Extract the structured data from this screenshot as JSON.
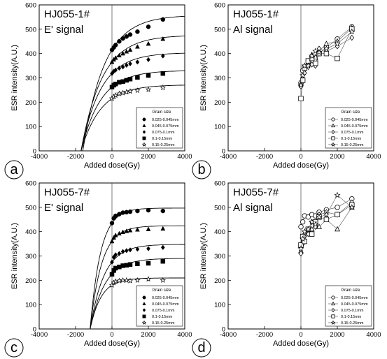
{
  "chart_data": [
    {
      "panel": "a",
      "type": "scatter",
      "title": "HJ055-1#",
      "subtitle": "E' signal",
      "xlabel": "Added dose(Gy)",
      "ylabel": "ESR intensity(A.U.)",
      "xlim": [
        -4000,
        4000
      ],
      "ylim": [
        0,
        600
      ],
      "xticks": [
        -4000,
        -2000,
        0,
        2000,
        4000
      ],
      "yticks": [
        0,
        100,
        200,
        300,
        400,
        500,
        600
      ],
      "legend_title": "Grain size",
      "legend_position": "bottom-right",
      "x": [
        0,
        100,
        200,
        400,
        600,
        800,
        1000,
        1400,
        2000,
        2800
      ],
      "series": [
        {
          "name": "0.025-0.045mm",
          "marker": "circle",
          "values": [
            415,
            425,
            435,
            450,
            462,
            470,
            478,
            490,
            510,
            540
          ],
          "fit_x0": -1600
        },
        {
          "name": "0.045-0.075mm",
          "marker": "triangle",
          "values": [
            365,
            375,
            382,
            392,
            400,
            408,
            415,
            428,
            440,
            460
          ],
          "fit_x0": -1700
        },
        {
          "name": "0.075-0.1mm",
          "marker": "diamond",
          "values": [
            318,
            327,
            332,
            340,
            345,
            352,
            358,
            365,
            375,
            390
          ],
          "fit_x0": -1700
        },
        {
          "name": "0.1-0.15mm",
          "marker": "square",
          "values": [
            262,
            270,
            275,
            282,
            285,
            290,
            295,
            302,
            310,
            318
          ],
          "fit_x0": -1700
        },
        {
          "name": "0.15-0.25mm",
          "marker": "star",
          "values": [
            215,
            222,
            228,
            235,
            238,
            242,
            245,
            248,
            252,
            260
          ],
          "fit_x0": -1700
        }
      ]
    },
    {
      "panel": "b",
      "type": "line",
      "title": "HJ055-1#",
      "subtitle": "Al signal",
      "xlabel": "Added dose(Gy)",
      "ylabel": "ESR intensity(A.U.)",
      "xlim": [
        -4000,
        4000
      ],
      "ylim": [
        0,
        600
      ],
      "xticks": [
        -4000,
        -2000,
        0,
        2000,
        4000
      ],
      "yticks": [
        0,
        100,
        200,
        300,
        400,
        500,
        600
      ],
      "legend_title": "Grain size",
      "legend_position": "bottom-right",
      "x": [
        0,
        100,
        200,
        400,
        600,
        800,
        1000,
        1400,
        2000,
        2800
      ],
      "series": [
        {
          "name": "0.025-0.045mm",
          "marker": "circle",
          "values": [
            280,
            330,
            345,
            355,
            365,
            370,
            400,
            425,
            460,
            510
          ]
        },
        {
          "name": "0.045-0.075mm",
          "marker": "triangle",
          "values": [
            275,
            300,
            340,
            360,
            395,
            385,
            410,
            440,
            450,
            505
          ]
        },
        {
          "name": "0.075-0.1mm",
          "marker": "diamond",
          "values": [
            265,
            285,
            320,
            345,
            355,
            350,
            420,
            410,
            430,
            465
          ]
        },
        {
          "name": "0.1-0.15mm",
          "marker": "square",
          "values": [
            215,
            290,
            340,
            370,
            380,
            360,
            400,
            400,
            380,
            500
          ]
        },
        {
          "name": "0.15-0.25mm",
          "marker": "star",
          "values": [
            270,
            310,
            350,
            350,
            390,
            410,
            405,
            420,
            440,
            490
          ]
        }
      ]
    },
    {
      "panel": "c",
      "type": "scatter",
      "title": "HJ055-7#",
      "subtitle": "E' signal",
      "xlabel": "Added dose(Gy)",
      "ylabel": "ESR intensity(A.U.)",
      "xlim": [
        -4000,
        4000
      ],
      "ylim": [
        0,
        600
      ],
      "xticks": [
        -4000,
        -2000,
        0,
        2000,
        4000
      ],
      "yticks": [
        0,
        100,
        200,
        300,
        400,
        500,
        600
      ],
      "legend_title": "Grain size",
      "legend_position": "bottom-right",
      "x": [
        0,
        100,
        200,
        400,
        600,
        800,
        1000,
        1400,
        2000,
        2800
      ],
      "series": [
        {
          "name": "0.025-0.045mm",
          "marker": "circle",
          "values": [
            435,
            455,
            465,
            472,
            478,
            480,
            482,
            485,
            488,
            485
          ],
          "fit_x0": -1200
        },
        {
          "name": "0.045-0.075mm",
          "marker": "triangle",
          "values": [
            360,
            375,
            385,
            392,
            398,
            402,
            405,
            408,
            410,
            412
          ],
          "fit_x0": -1200
        },
        {
          "name": "0.075-0.1mm",
          "marker": "diamond",
          "values": [
            275,
            295,
            305,
            310,
            318,
            322,
            325,
            328,
            330,
            335
          ],
          "fit_x0": -1200
        },
        {
          "name": "0.1-0.15mm",
          "marker": "square",
          "values": [
            225,
            240,
            250,
            255,
            260,
            262,
            265,
            268,
            270,
            278
          ],
          "fit_x0": -1200
        },
        {
          "name": "0.15-0.25mm",
          "marker": "star",
          "values": [
            180,
            190,
            195,
            198,
            200,
            200,
            198,
            200,
            205,
            200
          ],
          "fit_x0": -1200
        }
      ]
    },
    {
      "panel": "d",
      "type": "line",
      "title": "HJ055-7#",
      "subtitle": "Al signal",
      "xlabel": "Added dose(Gy)",
      "ylabel": "ESR intensity(A.U.)",
      "xlim": [
        -4000,
        4000
      ],
      "ylim": [
        0,
        600
      ],
      "xticks": [
        -4000,
        -2000,
        0,
        2000,
        4000
      ],
      "yticks": [
        0,
        100,
        200,
        300,
        400,
        500,
        600
      ],
      "legend_title": "Grain size",
      "legend_position": "bottom-right",
      "x": [
        0,
        100,
        200,
        400,
        600,
        800,
        1000,
        1400,
        2000,
        2800
      ],
      "series": [
        {
          "name": "0.025-0.045mm",
          "marker": "circle",
          "values": [
            420,
            440,
            465,
            460,
            470,
            465,
            480,
            490,
            500,
            535
          ]
        },
        {
          "name": "0.045-0.075mm",
          "marker": "triangle",
          "values": [
            320,
            360,
            395,
            400,
            410,
            430,
            420,
            450,
            410,
            500
          ]
        },
        {
          "name": "0.075-0.1mm",
          "marker": "diamond",
          "values": [
            310,
            350,
            380,
            390,
            440,
            420,
            470,
            480,
            470,
            520
          ]
        },
        {
          "name": "0.1-0.15mm",
          "marker": "square",
          "values": [
            345,
            380,
            360,
            410,
            390,
            440,
            460,
            450,
            470,
            510
          ]
        },
        {
          "name": "0.15-0.25mm",
          "marker": "star",
          "values": [
            330,
            370,
            400,
            410,
            440,
            430,
            460,
            470,
            550,
            500
          ]
        }
      ]
    }
  ]
}
